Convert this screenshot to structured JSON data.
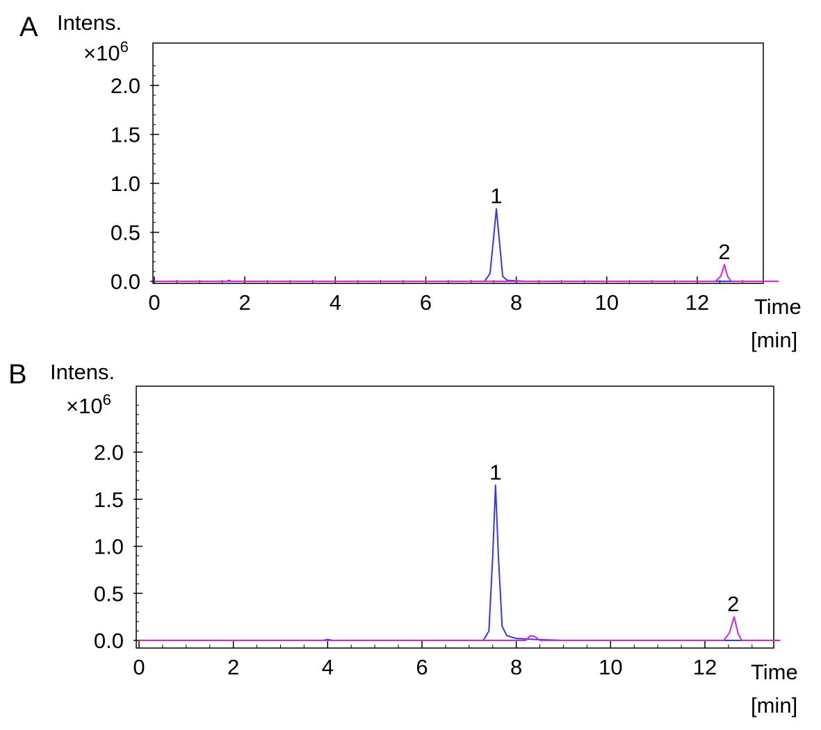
{
  "chart_data": [
    {
      "type": "line",
      "panel_label": "A",
      "ylabel": "Intens.",
      "y_multiplier": "×10",
      "y_multiplier_exp": "6",
      "xlabel_line1": "Time",
      "xlabel_line2": "[min]",
      "xlim": [
        0,
        13.8
      ],
      "ylim": [
        0,
        2.2
      ],
      "xticks": [
        0,
        2,
        4,
        6,
        8,
        10,
        12
      ],
      "xtick_labels": [
        "0",
        "2",
        "4",
        "6",
        "8",
        "10",
        "12"
      ],
      "yticks": [
        0,
        0.5,
        1.0,
        1.5,
        2.0
      ],
      "ytick_labels": [
        "0.0",
        "0.5",
        "1.0",
        "1.5",
        "2.0"
      ],
      "grid": false,
      "series": [
        {
          "color": "#3333ff",
          "x": [
            0,
            1.6,
            1.65,
            1.7,
            7.3,
            7.42,
            7.5,
            7.56,
            7.62,
            7.7,
            7.8,
            8.2,
            12.0,
            13.8
          ],
          "y": [
            0.0,
            0.0,
            0.01,
            0.0,
            0.0,
            0.08,
            0.45,
            0.74,
            0.45,
            0.05,
            0.01,
            0.0,
            0.0,
            0.0
          ]
        },
        {
          "color": "#e020e0",
          "x": [
            0,
            12.4,
            12.52,
            12.6,
            12.67,
            12.75,
            13.8
          ],
          "y": [
            0.0,
            0.0,
            0.05,
            0.17,
            0.05,
            0.0,
            0.0
          ]
        }
      ],
      "annotations": [
        {
          "text": "1",
          "x": 7.56,
          "y": 0.74
        },
        {
          "text": "2",
          "x": 12.6,
          "y": 0.17
        }
      ]
    },
    {
      "type": "line",
      "panel_label": "B",
      "ylabel": "Intens.",
      "y_multiplier": "×10",
      "y_multiplier_exp": "6",
      "xlabel_line1": "Time",
      "xlabel_line2": "[min]",
      "xlim": [
        0,
        13.6
      ],
      "ylim": [
        0,
        2.5
      ],
      "xticks": [
        0,
        2,
        4,
        6,
        8,
        10,
        12
      ],
      "xtick_labels": [
        "0",
        "2",
        "4",
        "6",
        "8",
        "10",
        "12"
      ],
      "yticks": [
        0,
        0.5,
        1.0,
        1.5,
        2.0
      ],
      "ytick_labels": [
        "0.0",
        "0.5",
        "1.0",
        "1.5",
        "2.0"
      ],
      "grid": false,
      "series": [
        {
          "color": "#3333ff",
          "x": [
            0,
            3.9,
            4.0,
            4.1,
            7.3,
            7.42,
            7.5,
            7.56,
            7.62,
            7.7,
            7.8,
            8.0,
            8.4,
            9.0,
            13.6
          ],
          "y": [
            0.0,
            0.0,
            0.01,
            0.0,
            0.0,
            0.1,
            0.9,
            1.65,
            0.9,
            0.15,
            0.05,
            0.02,
            0.01,
            0.0,
            0.0
          ]
        },
        {
          "color": "#e020e0",
          "x": [
            0,
            8.2,
            8.3,
            8.4,
            8.5,
            12.4,
            12.52,
            12.62,
            12.7,
            12.78,
            13.6
          ],
          "y": [
            0.0,
            0.0,
            0.05,
            0.04,
            0.0,
            0.0,
            0.08,
            0.25,
            0.08,
            0.0,
            0.0
          ]
        }
      ],
      "annotations": [
        {
          "text": "1",
          "x": 7.56,
          "y": 1.65
        },
        {
          "text": "2",
          "x": 12.6,
          "y": 0.25
        }
      ]
    }
  ]
}
